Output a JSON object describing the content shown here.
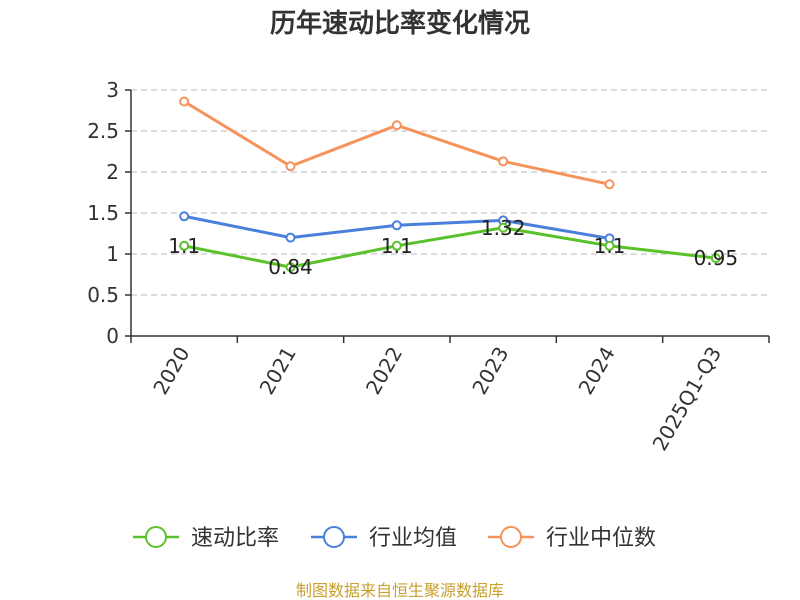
{
  "chart_data": {
    "type": "line",
    "title": "历年速动比率变化情况",
    "xlabel": "",
    "ylabel": "",
    "categories": [
      "2020",
      "2021",
      "2022",
      "2023",
      "2024",
      "2025Q1-Q3"
    ],
    "ylim": [
      0,
      3
    ],
    "yticks": [
      "0",
      "0.5",
      "1",
      "1.5",
      "2",
      "2.5",
      "3"
    ],
    "grid": true,
    "legend_position": "bottom",
    "series": [
      {
        "name": "速动比率",
        "color": "#5ac12b",
        "values": [
          1.1,
          0.84,
          1.1,
          1.32,
          1.1,
          0.95
        ],
        "labels": [
          "1.1",
          "0.84",
          "1.1",
          "1.32",
          "1.1",
          "0.95"
        ]
      },
      {
        "name": "行业均值",
        "color": "#4a7fdc",
        "values": [
          1.46,
          1.2,
          1.35,
          1.41,
          1.19,
          null
        ]
      },
      {
        "name": "行业中位数",
        "color": "#f5935a",
        "values": [
          2.86,
          2.07,
          2.57,
          2.13,
          1.85,
          null
        ]
      }
    ]
  },
  "source_text": "制图数据来自恒生聚源数据库"
}
